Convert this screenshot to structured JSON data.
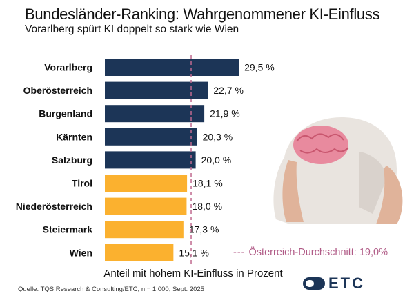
{
  "chart_data": {
    "type": "bar",
    "orientation": "horizontal",
    "title": "Bundesländer-Ranking: Wahrgenommener KI-Einfluss",
    "subtitle": "Vorarlberg spürt KI doppelt so stark wie Wien",
    "xlabel": "Anteil mit hohem KI-Einfluss in Prozent",
    "categories": [
      "Vorarlberg",
      "Oberösterreich",
      "Burgenland",
      "Kärnten",
      "Salzburg",
      "Tirol",
      "Niederösterreich",
      "Steiermark",
      "Wien"
    ],
    "values": [
      29.5,
      22.7,
      21.9,
      20.3,
      20.0,
      18.1,
      18.0,
      17.3,
      15.1
    ],
    "data_labels": [
      "29,5 %",
      "22,7 %",
      "21,9 %",
      "20,3 %",
      "20,0 %",
      "18,1 %",
      "18,0 %",
      "17,3 %",
      "15,1 %"
    ],
    "colors": [
      "#1c3557",
      "#1c3557",
      "#1c3557",
      "#1c3557",
      "#1c3557",
      "#fbb12f",
      "#fbb12f",
      "#fbb12f",
      "#fbb12f"
    ],
    "reference_line": {
      "value": 19.0,
      "label": "Österreich-Durchschnitt: 19,0%",
      "color": "#c0698f",
      "style": "dashed"
    },
    "grid": false
  },
  "source": "Quelle: TQS Research & Consulting/ETC, n = 1.000, Sept. 2025",
  "logo": "ETC",
  "image": "head-with-brain-illustration"
}
